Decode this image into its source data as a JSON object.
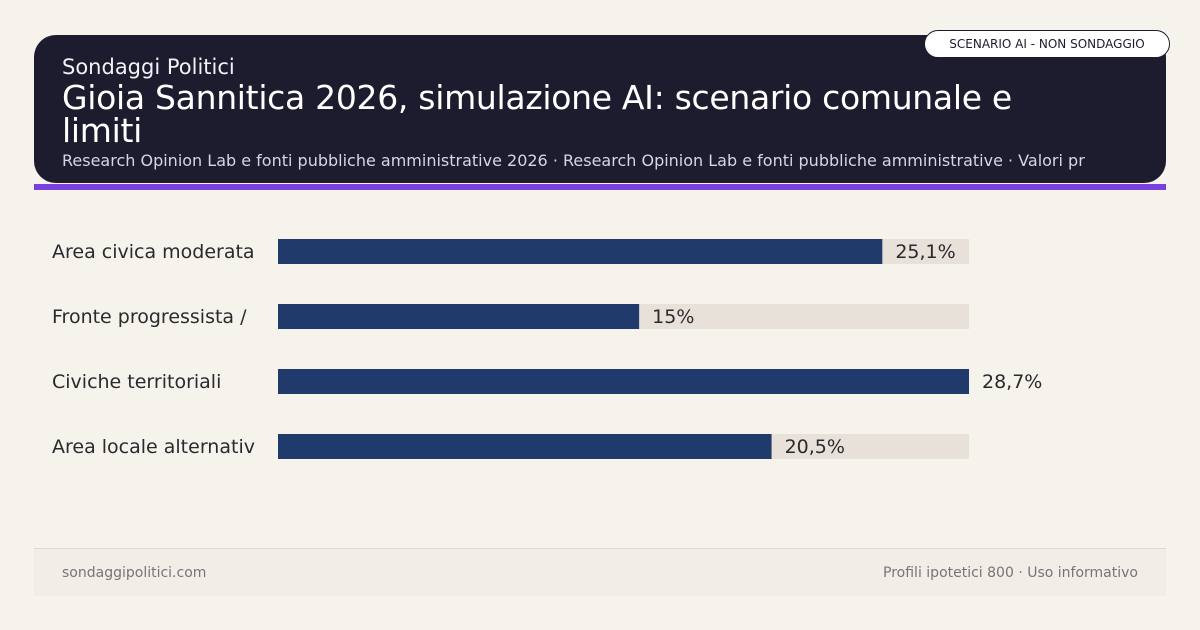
{
  "header": {
    "brand": "Sondaggi Politici",
    "title": "Gioia Sannitica 2026, simulazione AI: scenario comunale e limiti",
    "subtitle": "Research Opinion Lab e fonti pubbliche amministrative 2026 · Research Opinion Lab e fonti pubbliche amministrative · Valori pr",
    "badge": "SCENARIO AI - NON SONDAGGIO"
  },
  "chart_data": {
    "type": "bar",
    "orientation": "horizontal",
    "categories": [
      "Area civica moderata",
      "Fronte progressista /",
      "Civiche territoriali",
      "Area locale alternativ"
    ],
    "values": [
      25.1,
      15,
      28.7,
      20.5
    ],
    "value_labels": [
      "25,1%",
      "15%",
      "28,7%",
      "20,5%"
    ],
    "xlim": [
      0,
      28.7
    ],
    "colors": {
      "bar": "#1f3a6b",
      "track": "#e8e1d9",
      "label": "#2a2a2e"
    }
  },
  "footer": {
    "site": "sondaggipolitici.com",
    "note": "Profili ipotetici 800 · Uso informativo"
  }
}
